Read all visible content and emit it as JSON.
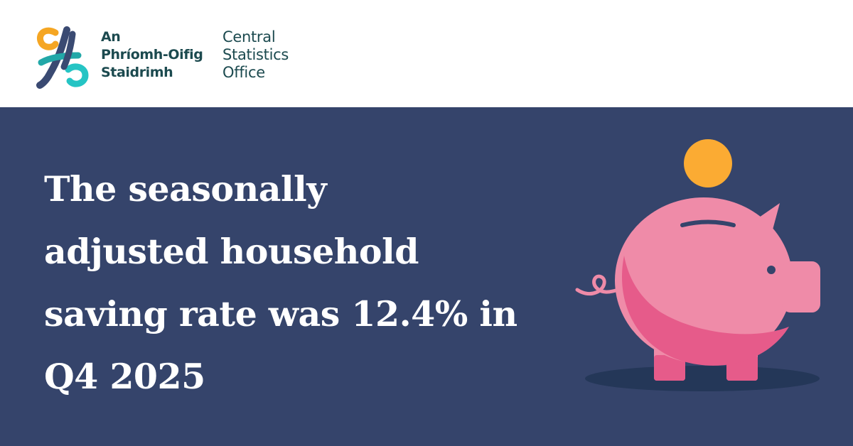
{
  "brand": {
    "irish_name": [
      "An",
      "Phríomh-Oifig",
      "Staidrimh"
    ],
    "english_name": [
      "Central",
      "Statistics",
      "Office"
    ],
    "colors": {
      "teal_dark": "#1c4a4f",
      "orange": "#f5a623",
      "cyan": "#25c4c4",
      "navy": "#3a4a72"
    }
  },
  "banner": {
    "background": "#35446b",
    "headline_lines": [
      "The seasonally",
      "adjusted household",
      "saving rate was 12.4% in",
      "Q4 2025"
    ]
  },
  "illustration": {
    "icon": "piggy-bank-icon",
    "coin_icon": "coin-icon",
    "colors": {
      "pig": "#ef8ba8",
      "pig_shade": "#e65b8a",
      "coin": "#fbab33",
      "shadow": "#243758"
    }
  }
}
